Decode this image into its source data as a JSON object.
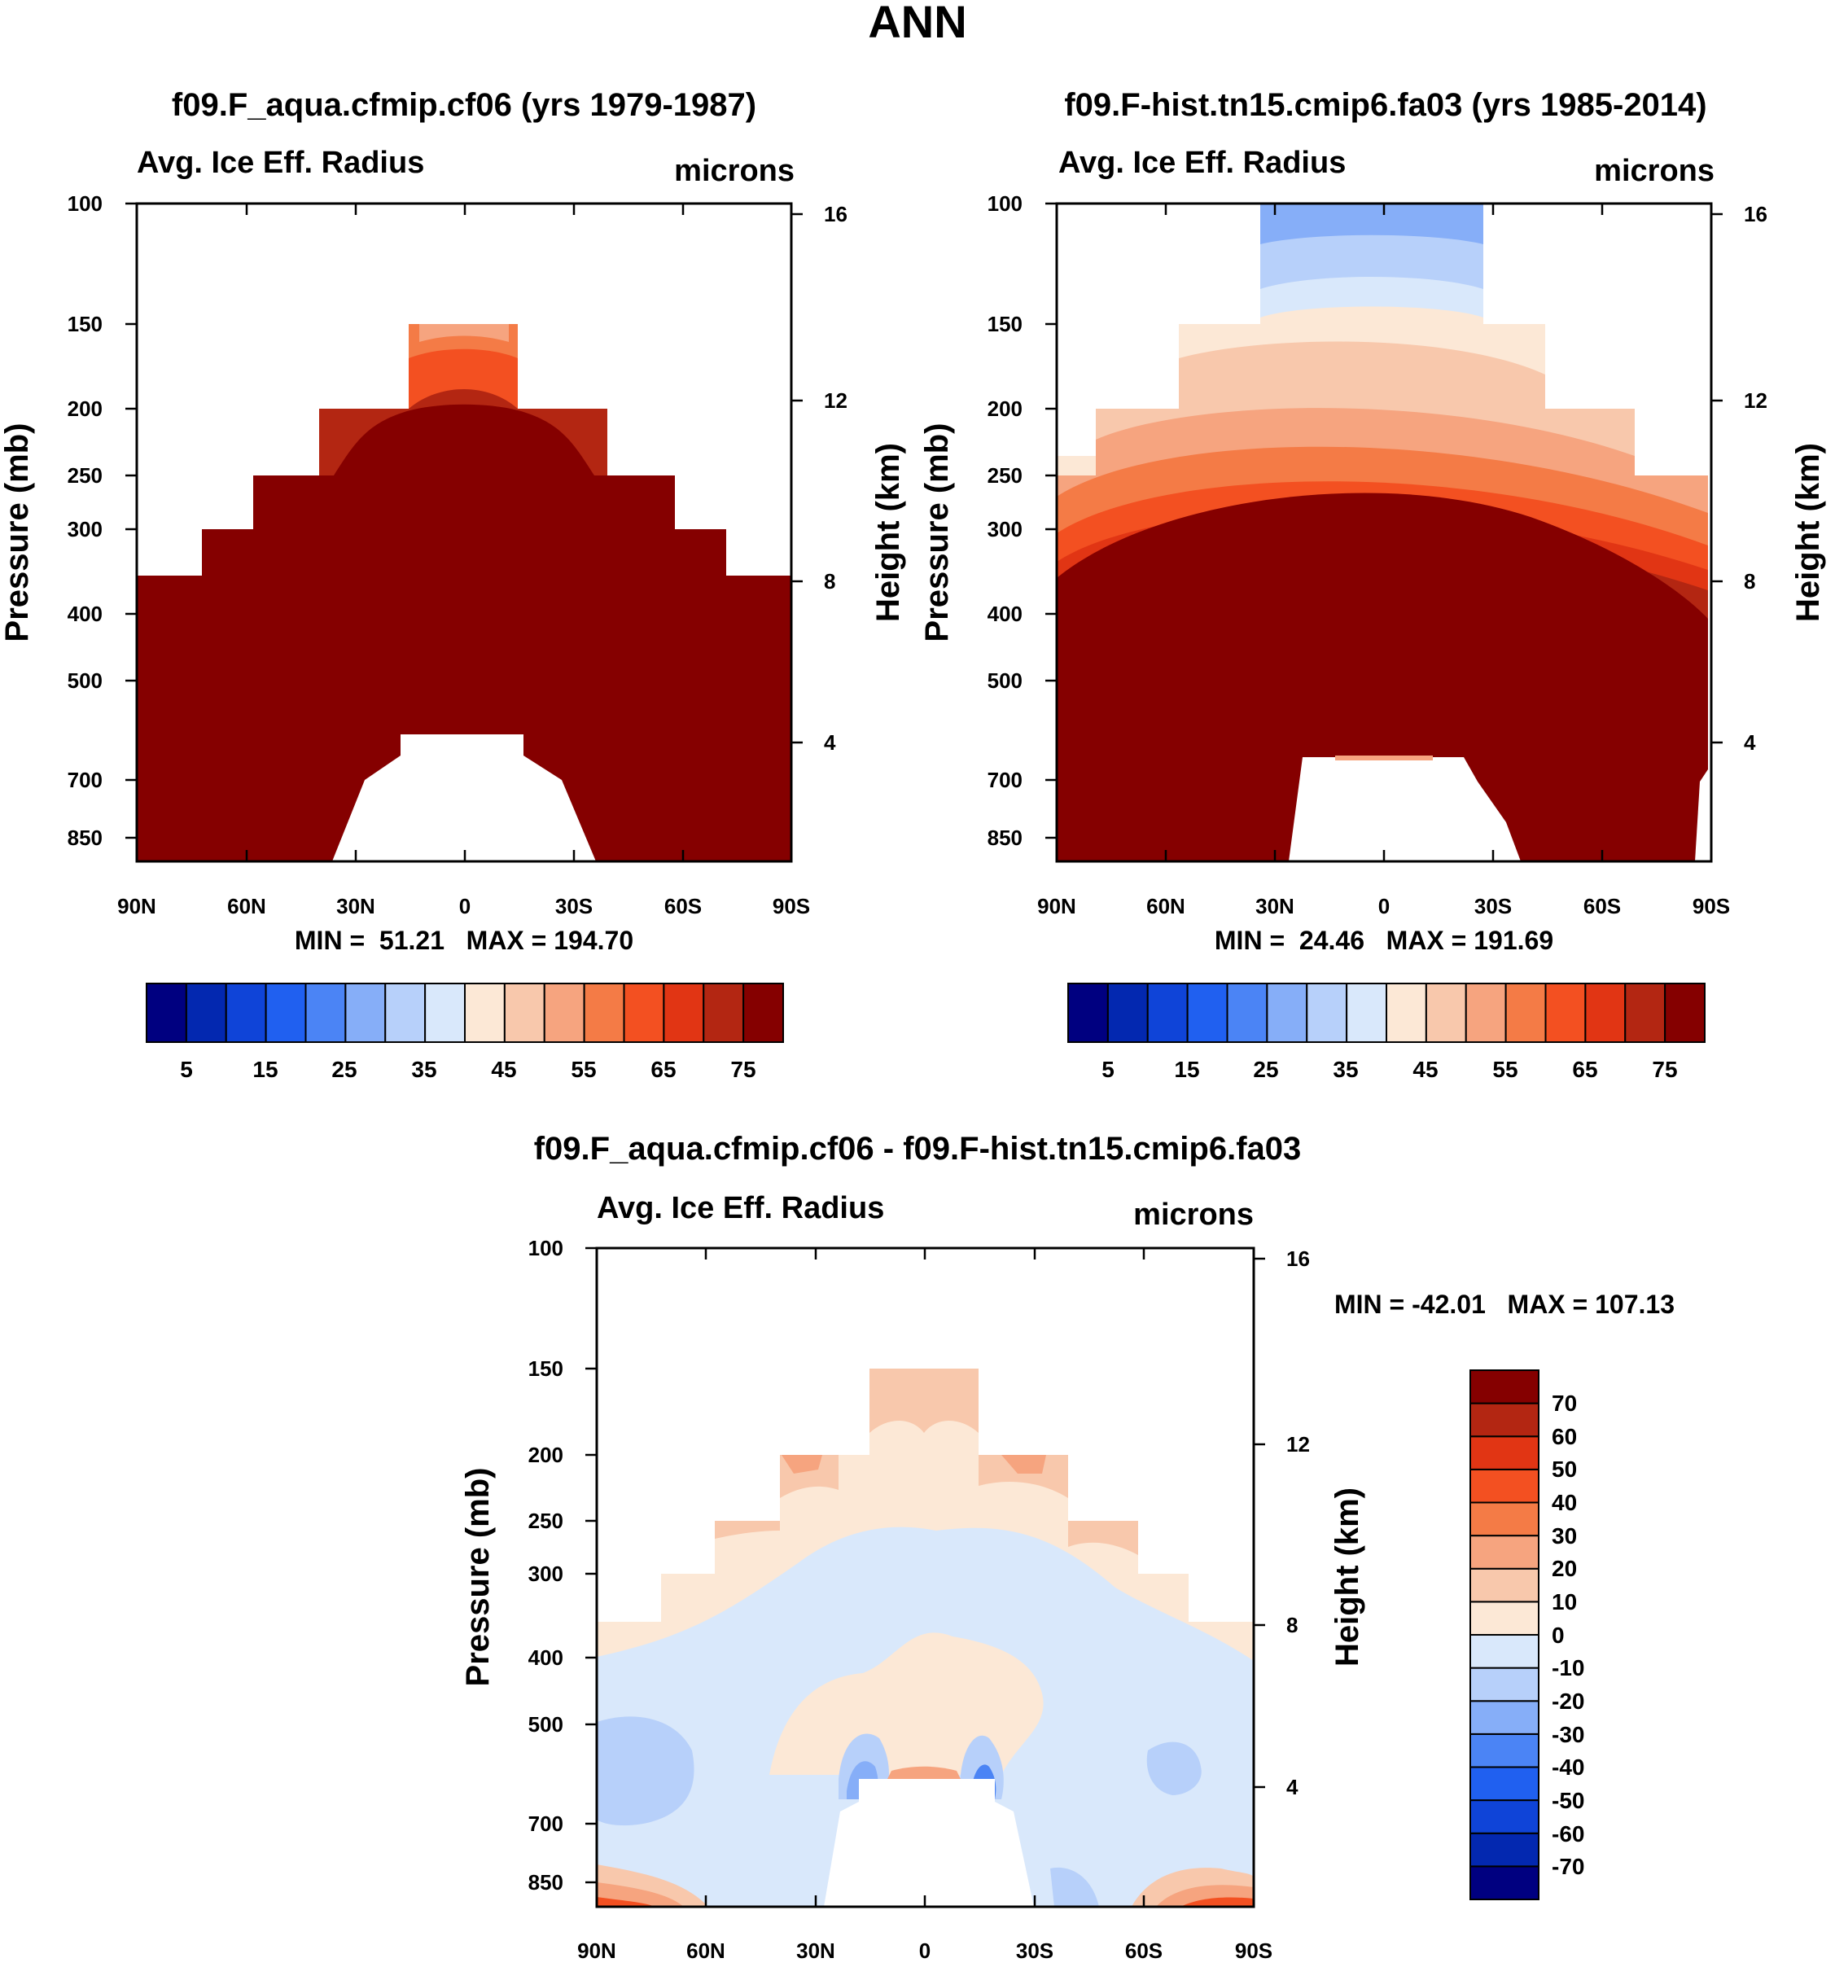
{
  "figure": {
    "title": "ANN"
  },
  "colors": {
    "blue_red_15": [
      "#000080",
      "#0328b0",
      "#0f44d8",
      "#2060f0",
      "#4b84f5",
      "#86aef8",
      "#b7d0fa",
      "#d9e8fb",
      "#fce8d6",
      "#f8c8ac",
      "#f6a47f",
      "#f47b46",
      "#f35021",
      "#e13514",
      "#b32612",
      "#850000"
    ],
    "blue_red_16": [
      "#000080",
      "#0328b0",
      "#0f44d8",
      "#2060f0",
      "#4b84f5",
      "#86aef8",
      "#b7d0fa",
      "#d9e8fb",
      "#fce8d6",
      "#f8c8ac",
      "#f6a47f",
      "#f47b46",
      "#f35021",
      "#e13514",
      "#b32612",
      "#850000"
    ]
  },
  "chart_data": [
    {
      "type": "contour",
      "id": "panel_a",
      "title": "f09.F_aqua.cfmip.cf06 (yrs 1979-1987)",
      "left_string": "Avg. Ice Eff. Radius",
      "right_string": "microns",
      "ylabel": "Pressure (mb)",
      "ylabel_right": "Height (km)",
      "xticks": [
        "90N",
        "60N",
        "30N",
        "0",
        "30S",
        "60S",
        "90S"
      ],
      "yticks": [
        "100",
        "150",
        "200",
        "250",
        "300",
        "400",
        "500",
        "700",
        "850"
      ],
      "yticks_right": [
        "16",
        "12",
        "8",
        "4"
      ],
      "stats": "MIN =  51.21   MAX = 194.70",
      "colorbar_labels": [
        "5",
        "15",
        "25",
        "35",
        "45",
        "55",
        "65",
        "75"
      ],
      "min": 51.21,
      "max": 194.7
    },
    {
      "type": "contour",
      "id": "panel_b",
      "title": "f09.F-hist.tn15.cmip6.fa03 (yrs 1985-2014)",
      "left_string": "Avg. Ice Eff. Radius",
      "right_string": "microns",
      "ylabel": "Pressure (mb)",
      "ylabel_right": "Height (km)",
      "xticks": [
        "90N",
        "60N",
        "30N",
        "0",
        "30S",
        "60S",
        "90S"
      ],
      "yticks": [
        "100",
        "150",
        "200",
        "250",
        "300",
        "400",
        "500",
        "700",
        "850"
      ],
      "yticks_right": [
        "16",
        "12",
        "8",
        "4"
      ],
      "stats": "MIN =  24.46   MAX = 191.69",
      "colorbar_labels": [
        "5",
        "15",
        "25",
        "35",
        "45",
        "55",
        "65",
        "75"
      ],
      "min": 24.46,
      "max": 191.69
    },
    {
      "type": "contour",
      "id": "panel_diff",
      "title": "f09.F_aqua.cfmip.cf06 - f09.F-hist.tn15.cmip6.fa03",
      "left_string": "Avg. Ice Eff. Radius",
      "right_string": "microns",
      "ylabel": "Pressure (mb)",
      "ylabel_right": "Height (km)",
      "xticks": [
        "90N",
        "60N",
        "30N",
        "0",
        "30S",
        "60S",
        "90S"
      ],
      "yticks": [
        "100",
        "150",
        "200",
        "250",
        "300",
        "400",
        "500",
        "700",
        "850"
      ],
      "yticks_right": [
        "16",
        "12",
        "8",
        "4"
      ],
      "stats": "MIN = -42.01   MAX = 107.13",
      "colorbar_labels": [
        "70",
        "60",
        "50",
        "40",
        "30",
        "20",
        "10",
        "0",
        "-10",
        "-20",
        "-30",
        "-40",
        "-50",
        "-60",
        "-70"
      ],
      "min": -42.01,
      "max": 107.13
    }
  ]
}
